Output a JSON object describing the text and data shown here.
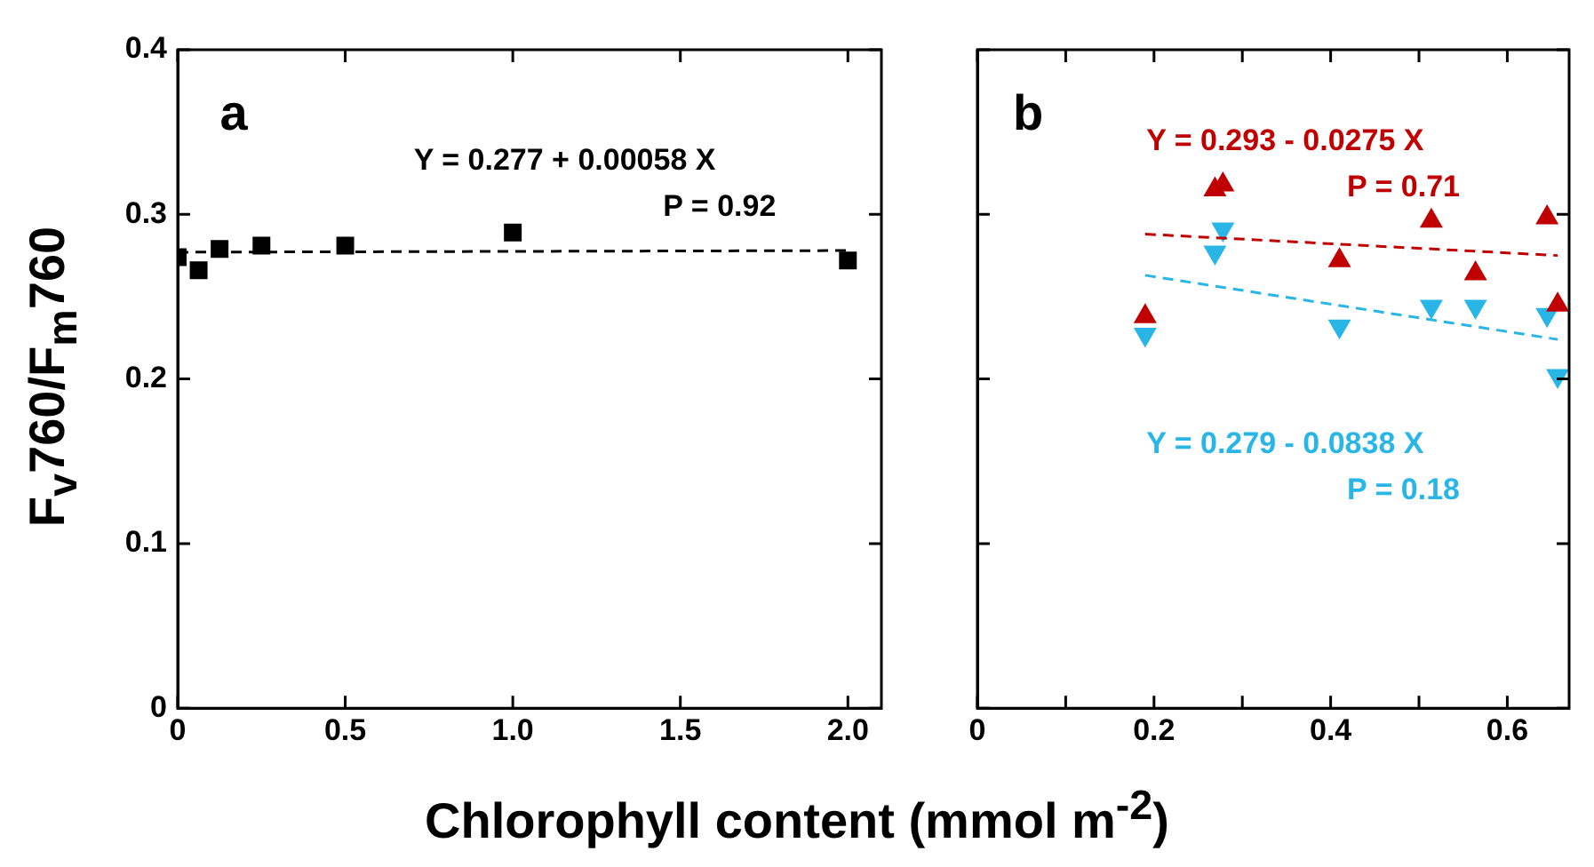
{
  "chart_data": [
    {
      "type": "scatter",
      "ylabel": "F$_{v}$760/F$_{m}$760",
      "xlabel": "Chlorophyll content (mmol m$^{-2}$)",
      "annotations": [
        "a",
        "Y = 0.277 + 0.00058 X",
        "P = 0.92"
      ],
      "xlim": [
        0,
        2.1
      ],
      "xticks": [
        0,
        0.5,
        {
          "value": 1,
          "label": "1.0"
        },
        1.5,
        {
          "value": 2,
          "label": "2.0"
        }
      ],
      "ylim": [
        0,
        0.4
      ],
      "yticks": [
        0,
        0.1,
        0.2,
        0.3,
        0.4
      ],
      "grid": false,
      "legend": false,
      "series": [
        {
          "color": "#000000",
          "marker": "square",
          "x": [
            0,
            0.0625,
            0.125,
            0.25,
            0.5,
            1,
            2
          ],
          "values": [
            0.274,
            0.266,
            0.279,
            0.281,
            0.281,
            0.289,
            0.272
          ]
        },
        {
          "type": "line",
          "color": "#000000",
          "line_style": "dashed",
          "marker": "none",
          "x": [
            0,
            2
          ],
          "values": [
            0.277,
            0.278
          ]
        }
      ]
    },
    {
      "type": "scatter",
      "annotations": [
        "b",
        "Y = 0.293 - 0.0275 X",
        "P = 0.71",
        "Y = 0.279 - 0.0838 X",
        "P = 0.18"
      ],
      "xlim": [
        0,
        0.67
      ],
      "xticks": [
        0,
        {
          "value": 0.1,
          "label": null
        },
        0.2,
        {
          "value": 0.3,
          "label": null
        },
        0.4,
        {
          "value": 0.5,
          "label": null
        },
        0.6
      ],
      "ylim": [
        0,
        0.4
      ],
      "yticks": [
        0,
        0.1,
        0.2,
        0.3,
        0.4
      ],
      "tick_labels": "x",
      "grid": false,
      "legend": false,
      "series": [
        {
          "color": "#c00000",
          "marker": "triangle",
          "x": [
            0.19,
            0.269,
            0.278,
            0.41,
            0.514,
            0.564,
            0.645,
            0.657
          ],
          "values": [
            0.238,
            0.315,
            0.318,
            0.272,
            0.296,
            0.264,
            0.298,
            0.245
          ]
        },
        {
          "type": "line",
          "color": "#c00000",
          "line_style": "dashed",
          "marker": "none",
          "x": [
            0.19,
            0.657
          ],
          "values": [
            0.288,
            0.275
          ]
        },
        {
          "color": "#29b6e6",
          "marker": "triangle",
          "x": [
            0.19,
            0.269,
            0.278,
            0.41,
            0.514,
            0.564,
            0.645,
            0.657
          ],
          "values": [
            0.227,
            0.277,
            0.291,
            0.232,
            0.244,
            0.244,
            0.239,
            0.202
          ]
        },
        {
          "type": "line",
          "color": "#29b6e6",
          "line_style": "dashed",
          "marker": "none",
          "x": [
            0.19,
            0.657
          ],
          "values": [
            0.263,
            0.224
          ]
        }
      ]
    }
  ]
}
